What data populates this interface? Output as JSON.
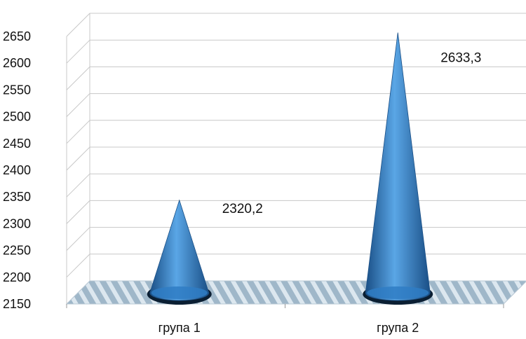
{
  "chart_data": {
    "type": "bar",
    "bar_shape": "cone-3d",
    "categories": [
      "група 1",
      "група 2"
    ],
    "values": [
      2320.2,
      2633.3
    ],
    "data_labels": [
      "2320,2",
      "2633,3"
    ],
    "ylim": [
      2150,
      2650
    ],
    "yticks": [
      "2150",
      "2200",
      "2250",
      "2300",
      "2350",
      "2400",
      "2450",
      "2500",
      "2550",
      "2600",
      "2650"
    ],
    "title": "",
    "xlabel": "",
    "ylabel": "",
    "grid": true,
    "legend": "none",
    "colors": {
      "cone": "#2f7cc4",
      "cone_dark": "#1a4f86",
      "cone_light": "#5aa6e6",
      "floor": "#9fb7c9",
      "floor_stripe": "#dce7ef",
      "grid": "#c8c8c8"
    }
  }
}
